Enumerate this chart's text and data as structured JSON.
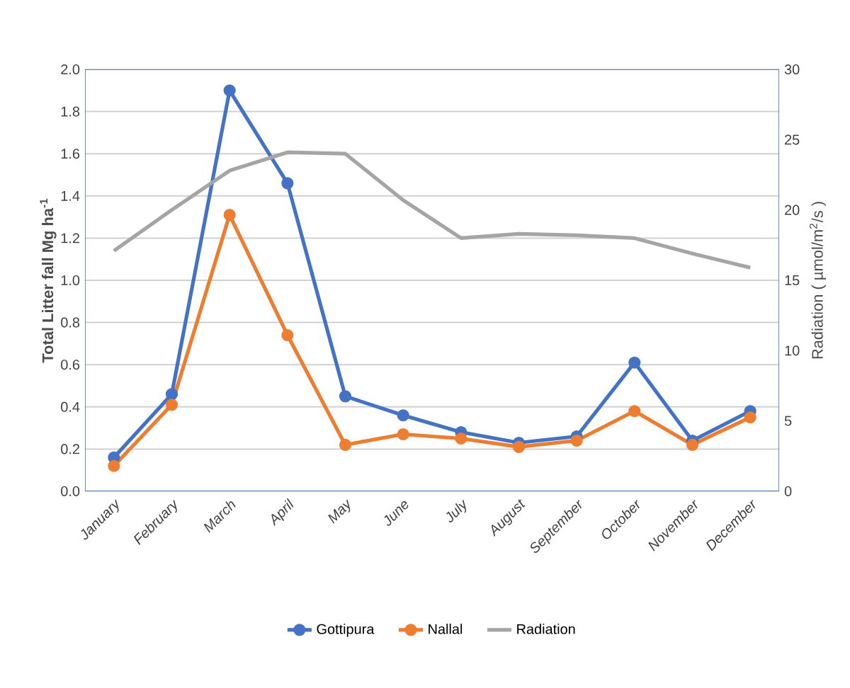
{
  "chart_data": {
    "type": "line",
    "ylabel": "Total Litter fall Mg ha$^{-1}$",
    "y2label": "Radiation ( µmol/m$^{2}$/s )",
    "categories": [
      "January",
      "February",
      "March",
      "April",
      "May",
      "June",
      "July",
      "August",
      "September",
      "October",
      "November",
      "December"
    ],
    "series": [
      {
        "name": "Gottipura",
        "color": "#4472c4",
        "marker": "circle",
        "values": [
          0.16,
          0.46,
          1.9,
          1.46,
          0.45,
          0.36,
          0.28,
          0.23,
          0.26,
          0.61,
          0.24,
          0.38
        ]
      },
      {
        "name": "Nallal",
        "color": "#ed7d31",
        "marker": "circle",
        "values": [
          0.12,
          0.41,
          1.31,
          0.74,
          0.22,
          0.27,
          0.25,
          0.21,
          0.24,
          0.38,
          0.22,
          0.35
        ]
      },
      {
        "name": "Radiation",
        "color": "#a5a5a5",
        "marker": "none",
        "axis": "y2",
        "values": [
          17.1,
          20.0,
          22.8,
          24.1,
          24.0,
          20.7,
          18.0,
          18.3,
          18.2,
          18.0,
          16.9,
          15.9
        ]
      }
    ],
    "ylim": [
      0,
      2
    ],
    "yticks": [
      {
        "value": 0,
        "label": "0.0"
      },
      {
        "value": 0.2,
        "label": "0.2"
      },
      {
        "value": 0.4,
        "label": "0.4"
      },
      {
        "value": 0.6,
        "label": "0.6"
      },
      {
        "value": 0.8,
        "label": "0.8"
      },
      {
        "value": 1.0,
        "label": "1.0"
      },
      {
        "value": 1.2,
        "label": "1.2"
      },
      {
        "value": 1.4,
        "label": "1.4"
      },
      {
        "value": 1.6,
        "label": "1.6"
      },
      {
        "value": 1.8,
        "label": "1.8"
      },
      {
        "value": 2.0,
        "label": "2.0"
      }
    ],
    "y2lim": [
      0,
      30
    ],
    "y2ticks": [
      0,
      5,
      10,
      15,
      20,
      25,
      30
    ],
    "grid": "y",
    "legend": "bottom"
  }
}
